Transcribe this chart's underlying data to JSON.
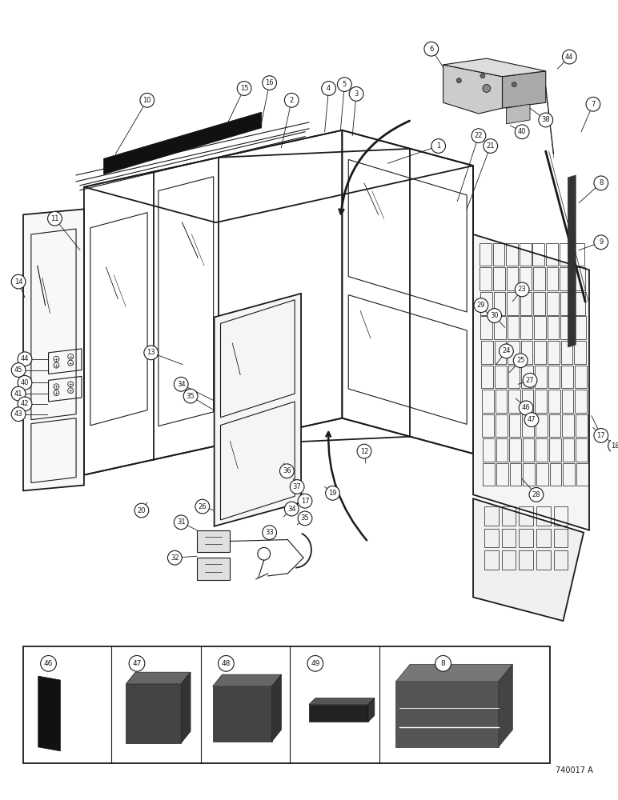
{
  "figure_number": "740017 A",
  "background_color": "#ffffff",
  "line_color": "#1a1a1a",
  "figsize": [
    7.72,
    10.0
  ],
  "dpi": 100
}
